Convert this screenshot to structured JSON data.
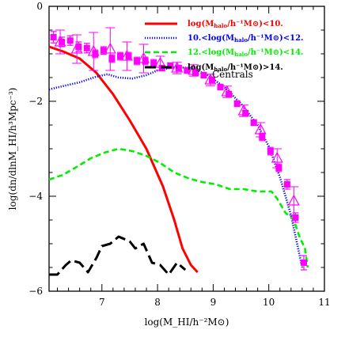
{
  "chart_data": {
    "type": "line",
    "xlabel": "log(M_HI/h⁻²M⊙)",
    "ylabel": "log(dn/dlnM_HI/h³Mpc⁻³)",
    "xlim": [
      6.05,
      11.0
    ],
    "ylim": [
      -6.0,
      0.0
    ],
    "x_ticks": [
      7,
      8,
      9,
      10,
      11
    ],
    "y_ticks": [
      0,
      -2,
      -4,
      -6
    ],
    "y_tick_labels": [
      "0",
      "−2",
      "−4",
      "−6"
    ],
    "grid": false,
    "legend_position": "top-right",
    "legend_entries": [
      {
        "pre": "log(M",
        "sub": "halo",
        "post": "/h⁻¹M⊙)<10.",
        "color": "#ff0000",
        "style": "solid"
      },
      {
        "pre": "10.<log(M",
        "sub": "halo",
        "post": "/h⁻¹M⊙)<12.",
        "color": "#0000ff",
        "style": "dotted"
      },
      {
        "pre": "12.<log(M",
        "sub": "halo",
        "post": "/h⁻¹M⊙)<14.",
        "color": "#00ee00",
        "style": "dashed"
      },
      {
        "pre": "log(M",
        "sub": "halo",
        "post": "/h⁻¹M⊙)>14.",
        "color": "#000000",
        "style": "longdash"
      }
    ],
    "annotation": "Centrals",
    "series": [
      {
        "color": "#ff0000",
        "style": "solid",
        "x": [
          6.05,
          6.3,
          6.6,
          6.9,
          7.2,
          7.5,
          7.8,
          8.1,
          8.3,
          8.45,
          8.6,
          8.72
        ],
        "y": [
          -0.85,
          -0.95,
          -1.1,
          -1.4,
          -1.85,
          -2.4,
          -3.0,
          -3.8,
          -4.5,
          -5.1,
          -5.45,
          -5.6
        ]
      },
      {
        "color": "#0000ff",
        "style": "dotted",
        "x": [
          6.05,
          6.3,
          6.6,
          6.9,
          7.1,
          7.3,
          7.55,
          7.8,
          8.0,
          8.3,
          8.6,
          8.9,
          9.2,
          9.5,
          9.8,
          10.0,
          10.2,
          10.4,
          10.6
        ],
        "y": [
          -1.75,
          -1.68,
          -1.6,
          -1.48,
          -1.43,
          -1.5,
          -1.52,
          -1.45,
          -1.35,
          -1.28,
          -1.3,
          -1.45,
          -1.7,
          -2.05,
          -2.5,
          -2.95,
          -3.6,
          -4.4,
          -5.5
        ]
      },
      {
        "color": "#00ee00",
        "style": "dashed",
        "x": [
          6.05,
          6.3,
          6.55,
          6.8,
          7.05,
          7.3,
          7.55,
          7.8,
          8.05,
          8.3,
          8.55,
          8.8,
          9.05,
          9.3,
          9.55,
          9.8,
          10.05,
          10.15,
          10.3,
          10.45,
          10.55,
          10.65,
          10.7
        ],
        "y": [
          -3.65,
          -3.55,
          -3.38,
          -3.2,
          -3.08,
          -3.0,
          -3.05,
          -3.15,
          -3.3,
          -3.5,
          -3.62,
          -3.7,
          -3.75,
          -3.85,
          -3.85,
          -3.9,
          -3.9,
          -4.05,
          -4.35,
          -4.5,
          -4.85,
          -5.1,
          -5.5
        ]
      },
      {
        "color": "#000000",
        "style": "longdash",
        "x": [
          6.05,
          6.2,
          6.35,
          6.45,
          6.6,
          6.75,
          6.9,
          7.0,
          7.15,
          7.3,
          7.5,
          7.6,
          7.75,
          7.9,
          8.05,
          8.2,
          8.35,
          8.5
        ],
        "y": [
          -5.65,
          -5.65,
          -5.45,
          -5.35,
          -5.4,
          -5.6,
          -5.3,
          -5.05,
          -5.0,
          -4.85,
          -4.95,
          -5.1,
          -5.0,
          -5.4,
          -5.45,
          -5.65,
          -5.4,
          -5.55
        ]
      }
    ],
    "points": {
      "squares": {
        "color": "#ff00ff",
        "x": [
          6.13,
          6.28,
          6.43,
          6.58,
          6.73,
          6.88,
          7.03,
          7.18,
          7.33,
          7.48,
          7.63,
          7.78,
          7.93,
          8.08,
          8.23,
          8.38,
          8.53,
          8.68,
          8.83,
          8.98,
          9.13,
          9.28,
          9.43,
          9.58,
          9.73,
          9.88,
          10.03,
          10.18,
          10.33,
          10.48,
          10.63
        ],
        "y": [
          -0.65,
          -0.75,
          -0.72,
          -0.85,
          -0.88,
          -1.0,
          -0.93,
          -1.1,
          -1.05,
          -1.05,
          -1.15,
          -1.15,
          -1.2,
          -1.3,
          -1.25,
          -1.3,
          -1.35,
          -1.4,
          -1.45,
          -1.55,
          -1.7,
          -1.85,
          -2.05,
          -2.25,
          -2.45,
          -2.75,
          -3.05,
          -3.4,
          -3.75,
          -4.45,
          -5.4
        ],
        "err": [
          0.12,
          0.1,
          0.1,
          0.1,
          0.1,
          0.08,
          0.08,
          0.08,
          0.08,
          0.08,
          0.08,
          0.08,
          0.08,
          0.06,
          0.06,
          0.06,
          0.06,
          0.06,
          0.06,
          0.06,
          0.06,
          0.06,
          0.06,
          0.06,
          0.06,
          0.08,
          0.08,
          0.08,
          0.1,
          0.1,
          0.15
        ]
      },
      "triangles": {
        "color": "#ff00ff",
        "x": [
          6.25,
          6.55,
          6.85,
          7.15,
          7.45,
          7.75,
          8.05,
          8.35,
          8.65,
          8.95,
          9.25,
          9.55,
          9.85,
          10.15,
          10.45
        ],
        "y": [
          -0.75,
          -0.9,
          -0.95,
          -0.9,
          -1.05,
          -1.1,
          -1.2,
          -1.3,
          -1.35,
          -1.55,
          -1.8,
          -2.2,
          -2.6,
          -3.2,
          -4.1
        ],
        "err": [
          0.25,
          0.3,
          0.4,
          0.45,
          0.3,
          0.3,
          0.15,
          0.12,
          0.12,
          0.12,
          0.12,
          0.12,
          0.15,
          0.2,
          0.3
        ]
      }
    }
  }
}
